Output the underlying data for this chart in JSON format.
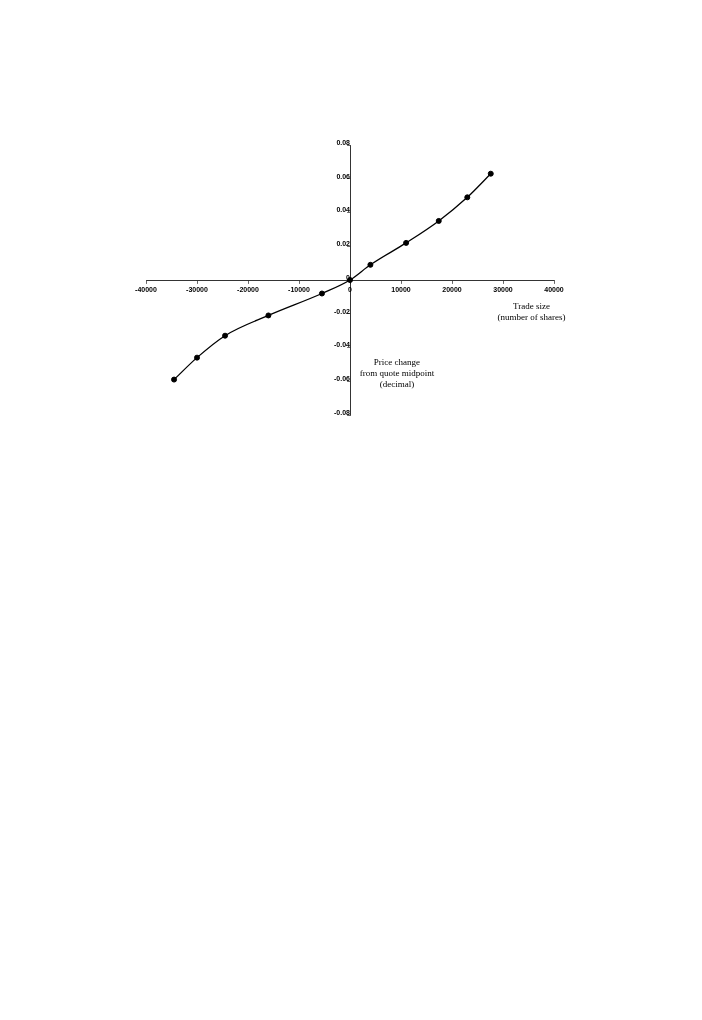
{
  "chart_data": {
    "type": "line",
    "xlabel": "Trade size\n(number of shares)",
    "ylabel": "Price change\nfrom quote midpoint\n(decimal)",
    "x": [
      -34500,
      -30000,
      -24500,
      -16000,
      -5500,
      0,
      4000,
      11000,
      17400,
      23000,
      27600
    ],
    "series": [
      {
        "color": "#000000",
        "values": [
          -0.059,
          -0.046,
          -0.033,
          -0.021,
          -0.008,
          0,
          0.009,
          0.022,
          0.035,
          0.049,
          0.063
        ]
      }
    ],
    "xlim": [
      -40000,
      40000
    ],
    "xticks": [
      -40000,
      -30000,
      -20000,
      -10000,
      0,
      10000,
      20000,
      30000,
      40000
    ],
    "ylim": [
      -0.08,
      0.08
    ],
    "yticks": [
      -0.08,
      -0.06,
      -0.04,
      -0.02,
      0,
      0.02,
      0.04,
      0.06,
      0.08
    ],
    "marker": "circle",
    "legend": false
  }
}
